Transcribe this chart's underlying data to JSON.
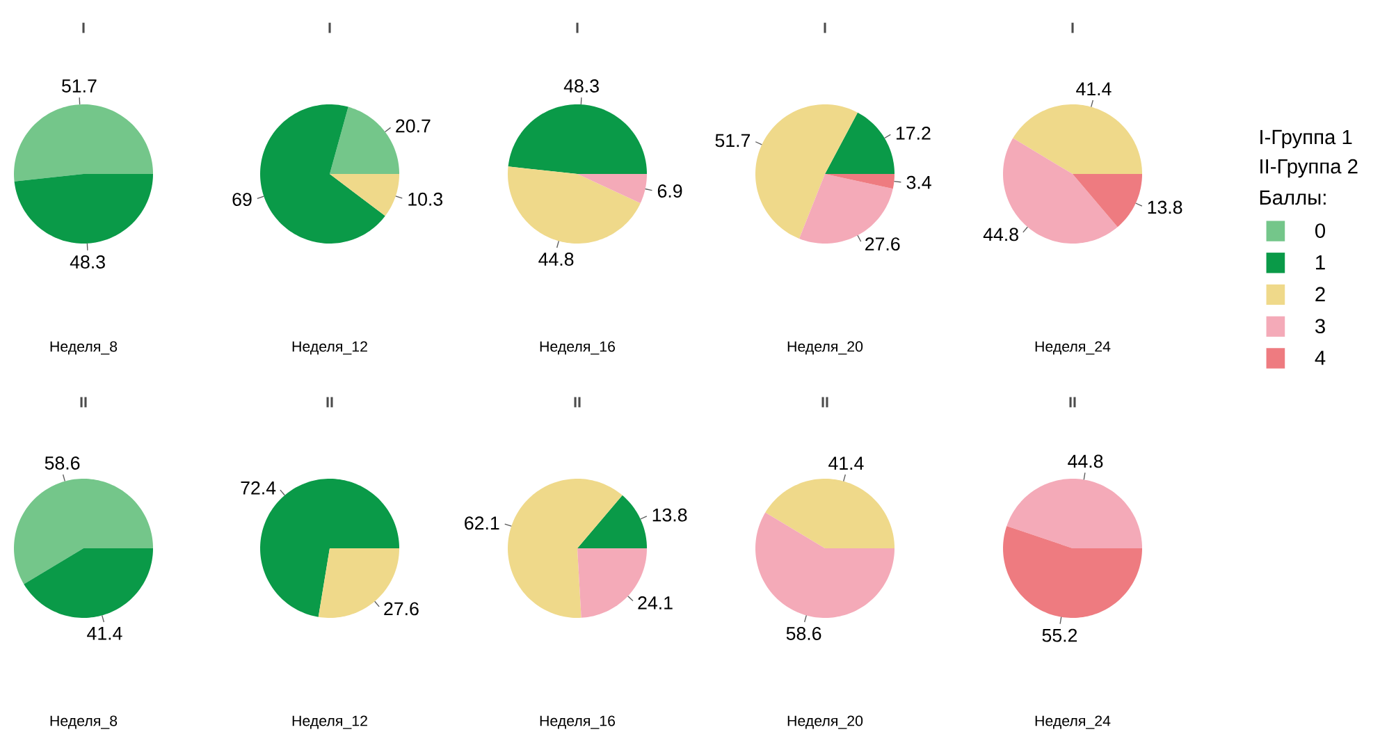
{
  "chart_data": [
    {
      "type": "pie",
      "title": "I",
      "xlabel": "Неделя_8",
      "values": [
        51.7,
        48.3,
        null,
        null,
        null
      ],
      "colors": [
        "#74c68a",
        "#0a9a48",
        "#efd98a",
        "#f4aab8",
        "#ee7b80"
      ],
      "data_labels": true
    },
    {
      "type": "pie",
      "title": "I",
      "xlabel": "Неделя_12",
      "values": [
        20.7,
        69,
        10.3,
        null,
        null
      ],
      "colors": [
        "#74c68a",
        "#0a9a48",
        "#efd98a",
        "#f4aab8",
        "#ee7b80"
      ],
      "data_labels": true
    },
    {
      "type": "pie",
      "title": "I",
      "xlabel": "Неделя_16",
      "values": [
        null,
        48.3,
        44.8,
        6.9,
        null
      ],
      "colors": [
        "#74c68a",
        "#0a9a48",
        "#efd98a",
        "#f4aab8",
        "#ee7b80"
      ],
      "data_labels": true
    },
    {
      "type": "pie",
      "title": "I",
      "xlabel": "Неделя_20",
      "values": [
        null,
        17.2,
        51.7,
        27.6,
        3.4
      ],
      "colors": [
        "#74c68a",
        "#0a9a48",
        "#efd98a",
        "#f4aab8",
        "#ee7b80"
      ],
      "data_labels": true
    },
    {
      "type": "pie",
      "title": "I",
      "xlabel": "Неделя_24",
      "categories": [
        "0",
        "1",
        "2",
        "3",
        "4"
      ],
      "values": [
        null,
        null,
        41.4,
        44.8,
        13.8
      ],
      "colors": [
        "#74c68a",
        "#0a9a48",
        "#efd98a",
        "#f4aab8",
        "#ee7b80"
      ],
      "data_labels": true,
      "legend": "right",
      "legend_title": "Баллы:",
      "annotations": [
        "I-Группа 1",
        "II-Группа 2"
      ]
    },
    {
      "type": "pie",
      "title": "II",
      "xlabel": "Неделя_8",
      "values": [
        58.6,
        41.4,
        null,
        null,
        null
      ],
      "colors": [
        "#74c68a",
        "#0a9a48",
        "#efd98a",
        "#f4aab8",
        "#ee7b80"
      ],
      "data_labels": true
    },
    {
      "type": "pie",
      "title": "II",
      "xlabel": "Неделя_12",
      "values": [
        null,
        72.4,
        27.6,
        null,
        null
      ],
      "colors": [
        "#74c68a",
        "#0a9a48",
        "#efd98a",
        "#f4aab8",
        "#ee7b80"
      ],
      "data_labels": true
    },
    {
      "type": "pie",
      "title": "II",
      "xlabel": "Неделя_16",
      "values": [
        null,
        13.8,
        62.1,
        24.1,
        null
      ],
      "colors": [
        "#74c68a",
        "#0a9a48",
        "#efd98a",
        "#f4aab8",
        "#ee7b80"
      ],
      "data_labels": true
    },
    {
      "type": "pie",
      "title": "II",
      "xlabel": "Неделя_20",
      "values": [
        null,
        null,
        41.4,
        58.6,
        null
      ],
      "colors": [
        "#74c68a",
        "#0a9a48",
        "#efd98a",
        "#f4aab8",
        "#ee7b80"
      ],
      "data_labels": true
    },
    {
      "type": "pie",
      "title": "II",
      "xlabel": "Неделя_24",
      "values": [
        null,
        null,
        null,
        44.8,
        55.2
      ],
      "colors": [
        "#74c68a",
        "#0a9a48",
        "#efd98a",
        "#f4aab8",
        "#ee7b80"
      ],
      "data_labels": true
    }
  ]
}
